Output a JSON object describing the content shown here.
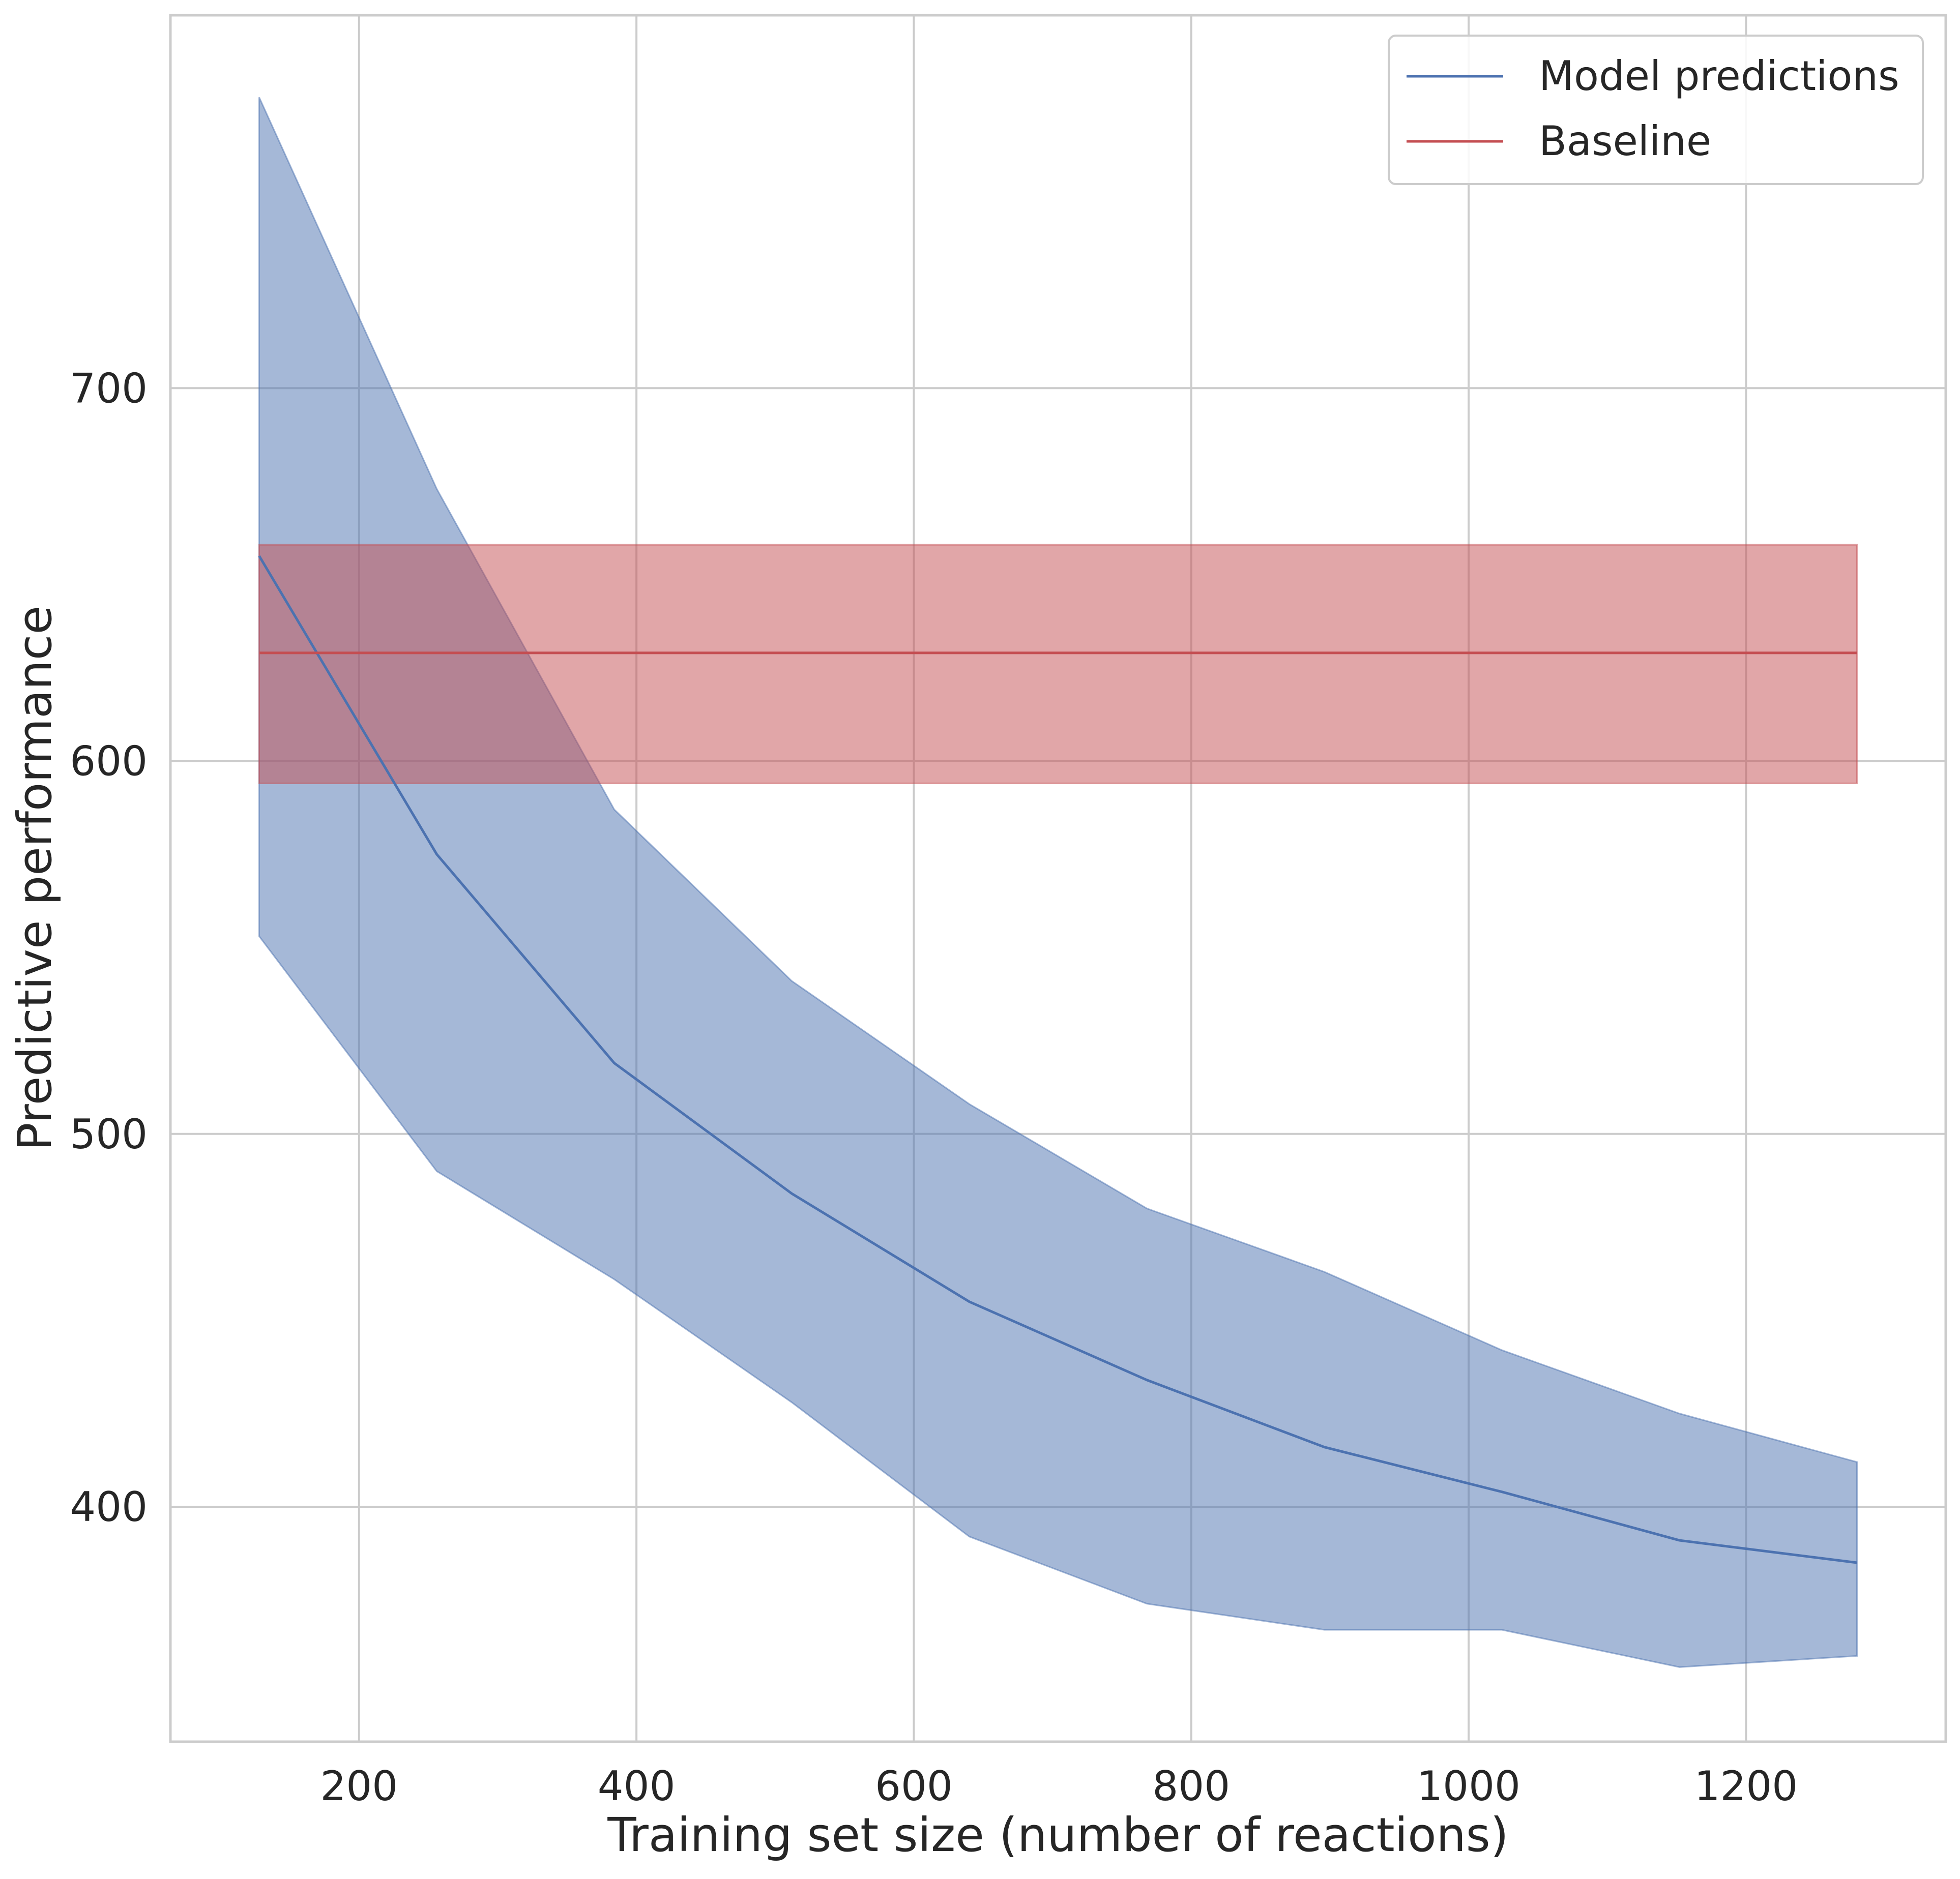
{
  "chart_data": {
    "type": "line",
    "title": "",
    "xlabel": "Training set size (number of reactions)",
    "ylabel": "Predictive performance",
    "xlim": [
      64,
      1344
    ],
    "ylim": [
      337,
      800
    ],
    "xticks": [
      200,
      400,
      600,
      800,
      1000,
      1200
    ],
    "yticks": [
      400,
      500,
      600,
      700
    ],
    "grid": true,
    "legend_position": "top-right",
    "series": [
      {
        "name": "Model predictions",
        "color": "#4c72b0",
        "band_color": "#4c72b0",
        "x": [
          128,
          256,
          384,
          512,
          640,
          768,
          896,
          1024,
          1152,
          1280
        ],
        "y": [
          655,
          575,
          519,
          484,
          455,
          434,
          416,
          404,
          391,
          385
        ],
        "lower": [
          553,
          490,
          461,
          428,
          392,
          374,
          367,
          367,
          357,
          360
        ],
        "upper": [
          778,
          673,
          587,
          541,
          508,
          480,
          463,
          442,
          425,
          412
        ]
      },
      {
        "name": "Baseline",
        "color": "#c44e52",
        "band_color": "#c44e52",
        "x": [
          128,
          1280
        ],
        "y": [
          629,
          629
        ],
        "lower": [
          594,
          594
        ],
        "upper": [
          658,
          658
        ]
      }
    ]
  }
}
